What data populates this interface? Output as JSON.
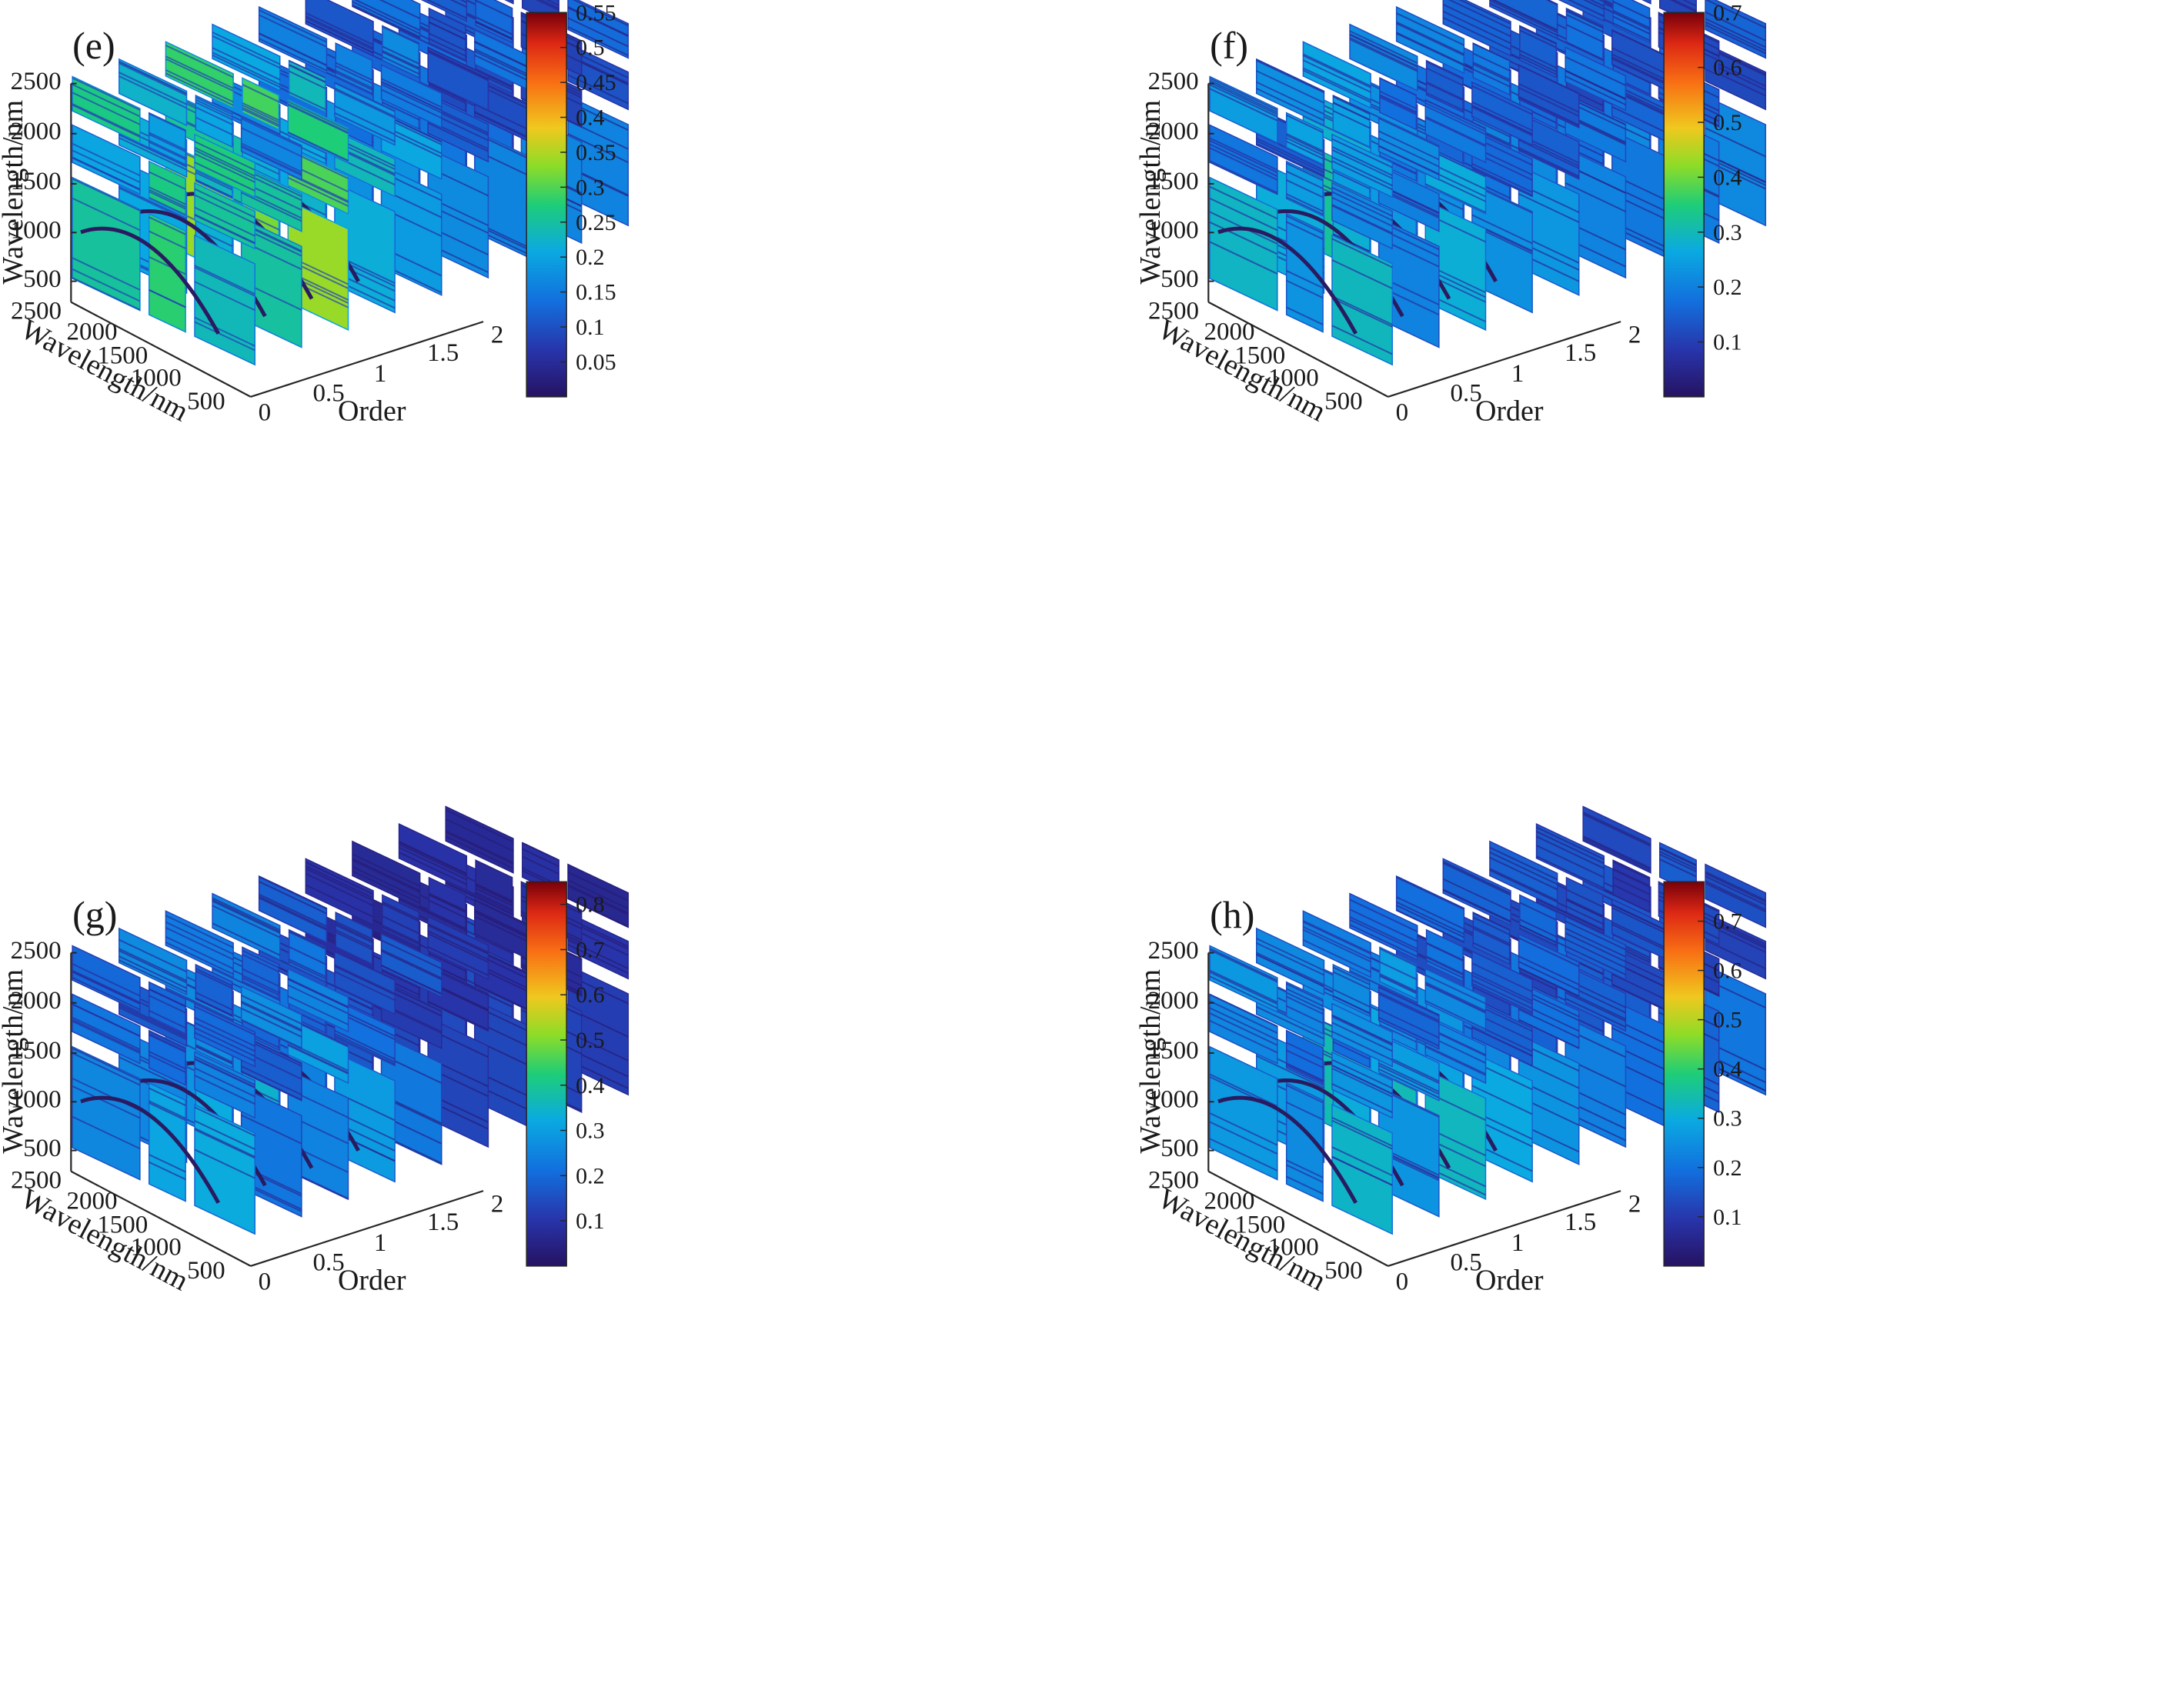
{
  "chart_data": [
    {
      "type": "heatmap",
      "panel_label": "(e)",
      "wavelength_ticks": [
        "2500",
        "2000",
        "1500",
        "1000",
        "500"
      ],
      "order_ticks": [
        "0",
        "0.5",
        "1",
        "1.5",
        "2"
      ],
      "zlabel": "Wavelength/nm",
      "ylabel": "Wavelength/nm",
      "xlabel": "Order",
      "slice_orders": [
        0,
        0.25,
        0.5,
        0.75,
        1.0,
        1.25,
        1.5,
        1.75,
        2.0
      ],
      "colorbar": {
        "min": 0,
        "max": 0.55,
        "tick_labels": [
          "0.05",
          "0.1",
          "0.15",
          "0.2",
          "0.25",
          "0.3",
          "0.35",
          "0.4",
          "0.45",
          "0.5",
          "0.55"
        ]
      },
      "intensity": [
        0.42,
        0.4,
        0.45,
        0.36,
        0.3,
        0.25,
        0.22,
        0.2,
        0.2
      ]
    },
    {
      "type": "heatmap",
      "panel_label": "(f)",
      "wavelength_ticks": [
        "2500",
        "2000",
        "1500",
        "1000",
        "500"
      ],
      "order_ticks": [
        "0",
        "0.5",
        "1",
        "1.5",
        "2"
      ],
      "zlabel": "Wavelength/nm",
      "ylabel": "Wavelength/nm",
      "xlabel": "Order",
      "slice_orders": [
        0,
        0.25,
        0.5,
        0.75,
        1.0,
        1.25,
        1.5,
        1.75,
        2.0
      ],
      "colorbar": {
        "min": 0,
        "max": 0.7,
        "tick_labels": [
          "0.1",
          "0.2",
          "0.3",
          "0.4",
          "0.5",
          "0.6",
          "0.7"
        ]
      },
      "intensity": [
        0.3,
        0.29,
        0.33,
        0.28,
        0.25,
        0.22,
        0.21,
        0.2,
        0.2
      ]
    },
    {
      "type": "heatmap",
      "panel_label": "(g)",
      "wavelength_ticks": [
        "2500",
        "2000",
        "1500",
        "1000",
        "500"
      ],
      "order_ticks": [
        "0",
        "0.5",
        "1",
        "1.5",
        "2"
      ],
      "zlabel": "Wavelength/nm",
      "ylabel": "Wavelength/nm",
      "xlabel": "Order",
      "slice_orders": [
        0,
        0.25,
        0.5,
        0.75,
        1.0,
        1.25,
        1.5,
        1.75,
        2.0
      ],
      "colorbar": {
        "min": 0,
        "max": 0.85,
        "tick_labels": [
          "0.1",
          "0.2",
          "0.3",
          "0.4",
          "0.5",
          "0.6",
          "0.7",
          "0.8"
        ]
      },
      "intensity": [
        0.28,
        0.26,
        0.3,
        0.24,
        0.18,
        0.12,
        0.1,
        0.1,
        0.1
      ]
    },
    {
      "type": "heatmap",
      "panel_label": "(h)",
      "wavelength_ticks": [
        "2500",
        "2000",
        "1500",
        "1000",
        "500"
      ],
      "order_ticks": [
        "0",
        "0.5",
        "1",
        "1.5",
        "2"
      ],
      "zlabel": "Wavelength/nm",
      "ylabel": "Wavelength/nm",
      "xlabel": "Order",
      "slice_orders": [
        0,
        0.25,
        0.5,
        0.75,
        1.0,
        1.25,
        1.5,
        1.75,
        2.0
      ],
      "colorbar": {
        "min": 0,
        "max": 0.78,
        "tick_labels": [
          "0.1",
          "0.2",
          "0.3",
          "0.4",
          "0.5",
          "0.6",
          "0.7"
        ]
      },
      "intensity": [
        0.3,
        0.28,
        0.32,
        0.27,
        0.22,
        0.19,
        0.18,
        0.17,
        0.17
      ]
    }
  ]
}
